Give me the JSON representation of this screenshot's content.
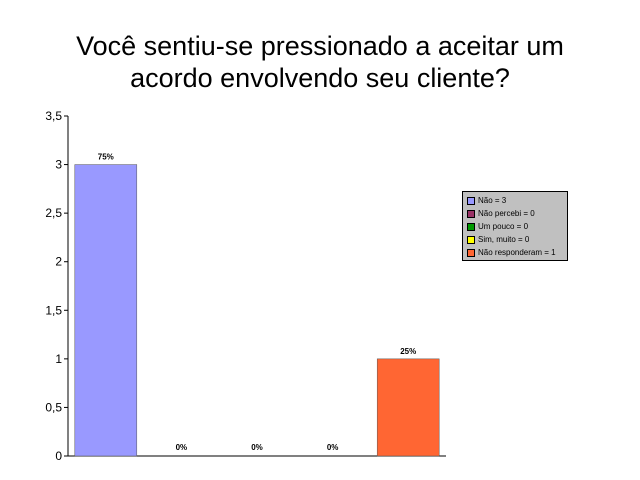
{
  "chart_data": {
    "type": "bar",
    "title_lines": [
      "Você sentiu-se pressionado a aceitar um",
      "acordo envolvendo seu cliente?"
    ],
    "ylim": [
      0,
      3.5
    ],
    "yticks": [
      "0",
      "0,5",
      "1",
      "1,5",
      "2",
      "2,5",
      "3",
      "3,5"
    ],
    "ytick_values": [
      0,
      0.5,
      1,
      1.5,
      2,
      2.5,
      3,
      3.5
    ],
    "grid": false,
    "legend_position": "right",
    "series": [
      {
        "name": "Não = 3",
        "value": 3,
        "label": "75%",
        "color": "#9999ff"
      },
      {
        "name": "Não percebi = 0",
        "value": 0,
        "label": "0%",
        "color": "#993366"
      },
      {
        "name": "Um pouco = 0",
        "value": 0,
        "label": "0%",
        "color": "#009900"
      },
      {
        "name": "Sim, muito = 0",
        "value": 0,
        "label": "0%",
        "color": "#ffff00"
      },
      {
        "name": "Não responderam = 1",
        "value": 1,
        "label": "25%",
        "color": "#ff6633"
      }
    ]
  }
}
